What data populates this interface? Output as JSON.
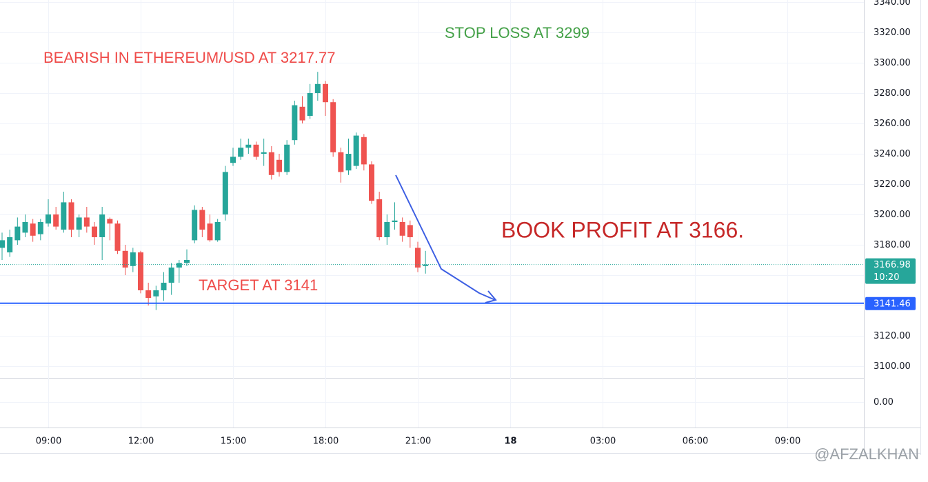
{
  "chart_data": {
    "type": "candlestick",
    "annotations": [
      "BEARISH IN ETHEREUM/USD AT 3217.77",
      "STOP LOSS AT 3299",
      "TARGET AT 3141",
      "BOOK PROFIT AT 3166."
    ],
    "watermark": "@AFZALKHAN",
    "up_color": "#26a69a",
    "down_color": "#ef5350",
    "x": [
      7.5,
      7.75,
      8,
      8.25,
      8.5,
      8.75,
      9,
      9.25,
      9.5,
      9.75,
      10,
      10.25,
      10.5,
      10.75,
      11,
      11.25,
      11.5,
      11.75,
      12,
      12.25,
      12.5,
      12.75,
      13,
      13.25,
      13.5,
      13.75,
      14,
      14.25,
      14.5,
      14.75,
      15,
      15.25,
      15.5,
      15.75,
      16,
      16.25,
      16.5,
      16.75,
      17,
      17.25,
      17.5,
      17.75,
      18,
      18.25,
      18.5,
      18.75,
      19,
      19.25,
      19.5,
      19.75,
      20,
      20.25,
      20.5,
      20.75,
      21,
      21.25
    ],
    "open": [
      3178,
      3175,
      3183,
      3188,
      3194,
      3187,
      3194,
      3200,
      3190,
      3208,
      3190,
      3198,
      3192,
      3185,
      3197,
      3194,
      3176,
      3166,
      3175,
      3150,
      3146,
      3150,
      3155,
      3165,
      3168,
      3183,
      3203,
      3194,
      3183,
      3200,
      3234,
      3238,
      3244,
      3246,
      3240,
      3241,
      3236,
      3228,
      3249,
      3271,
      3265,
      3280,
      3286,
      3274,
      3241,
      3229,
      3232,
      3251,
      3233,
      3210,
      3185,
      3195,
      3195,
      3193,
      3178,
      3166
    ],
    "high": [
      3188,
      3190,
      3198,
      3200,
      3197,
      3197,
      3210,
      3205,
      3215,
      3210,
      3200,
      3205,
      3195,
      3205,
      3198,
      3196,
      3180,
      3178,
      3176,
      3155,
      3153,
      3162,
      3168,
      3170,
      3177,
      3206,
      3205,
      3200,
      3197,
      3232,
      3244,
      3250,
      3250,
      3248,
      3250,
      3245,
      3240,
      3249,
      3275,
      3278,
      3286,
      3294,
      3288,
      3276,
      3244,
      3250,
      3254,
      3253,
      3235,
      3215,
      3200,
      3208,
      3198,
      3196,
      3182,
      3176
    ],
    "low": [
      3170,
      3172,
      3180,
      3185,
      3182,
      3183,
      3192,
      3190,
      3188,
      3185,
      3185,
      3188,
      3180,
      3170,
      3183,
      3174,
      3160,
      3162,
      3148,
      3140,
      3137,
      3143,
      3147,
      3155,
      3166,
      3181,
      3185,
      3182,
      3182,
      3196,
      3232,
      3236,
      3240,
      3236,
      3232,
      3223,
      3225,
      3226,
      3246,
      3260,
      3263,
      3275,
      3265,
      3238,
      3221,
      3226,
      3230,
      3229,
      3207,
      3183,
      3180,
      3190,
      3182,
      3178,
      3162,
      3161
    ],
    "close": [
      3183,
      3185,
      3192,
      3195,
      3186,
      3195,
      3200,
      3192,
      3208,
      3190,
      3198,
      3192,
      3185,
      3200,
      3194,
      3176,
      3165,
      3175,
      3150,
      3145,
      3150,
      3155,
      3165,
      3168,
      3170,
      3203,
      3190,
      3183,
      3195,
      3228,
      3238,
      3244,
      3246,
      3238,
      3241,
      3226,
      3228,
      3246,
      3272,
      3262,
      3280,
      3286,
      3274,
      3241,
      3228,
      3240,
      3252,
      3233,
      3209,
      3185,
      3195,
      3196,
      3186,
      3185,
      3165,
      3166.98
    ],
    "ylim": [
      3100,
      3340
    ],
    "yticks": [
      {
        "value": 3100,
        "label": "3100.00"
      },
      {
        "value": 3120,
        "label": "3120.00"
      },
      {
        "value": 3140,
        "label": "3140.00"
      },
      {
        "value": 3160,
        "label": "3160.00"
      },
      {
        "value": 3180,
        "label": "3180.00"
      },
      {
        "value": 3200,
        "label": "3200.00"
      },
      {
        "value": 3220,
        "label": "3220.00"
      },
      {
        "value": 3240,
        "label": "3240.00"
      },
      {
        "value": 3260,
        "label": "3260.00"
      },
      {
        "value": 3280,
        "label": "3280.00"
      },
      {
        "value": 3300,
        "label": "3300.00"
      },
      {
        "value": 3320,
        "label": "3320.00"
      },
      {
        "value": 3340,
        "label": "3340.00"
      }
    ],
    "lower_pane_ticks": [
      {
        "value": 0,
        "label": "0.00"
      }
    ],
    "xticks": [
      {
        "value": 9,
        "label": "09:00"
      },
      {
        "value": 12,
        "label": "12:00"
      },
      {
        "value": 15,
        "label": "15:00"
      },
      {
        "value": 18,
        "label": "18:00"
      },
      {
        "value": 21,
        "label": "21:00"
      },
      {
        "value": 24,
        "label": "18"
      },
      {
        "value": 27,
        "label": "03:00"
      },
      {
        "value": 30,
        "label": "06:00"
      },
      {
        "value": 33,
        "label": "09:00"
      }
    ],
    "last_price": {
      "value": 3166.98,
      "label": "3166.98",
      "countdown": "10:20"
    },
    "hline": {
      "value": 3141.46,
      "label": "3141.46",
      "color": "#2962ff"
    },
    "grid": true
  }
}
